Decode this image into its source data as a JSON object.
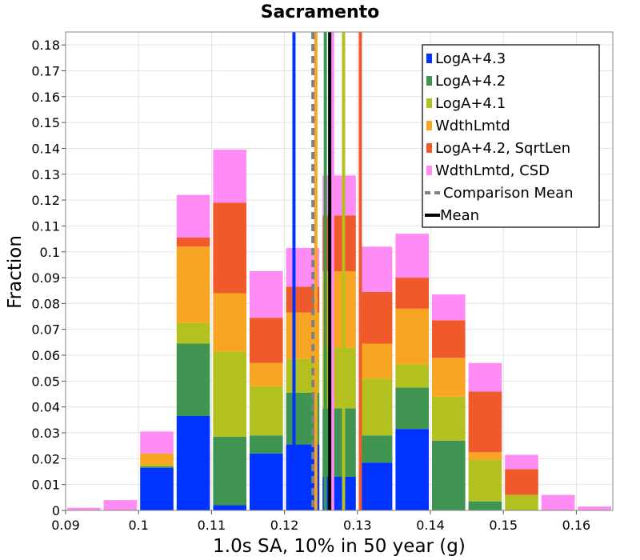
{
  "chart_data": {
    "type": "bar",
    "stacked": true,
    "title": "Sacramento",
    "xlabel": "1.0s SA, 10% in 50 year (g)",
    "ylabel": "Fraction",
    "xlim": [
      0.09,
      0.165
    ],
    "ylim": [
      0,
      0.185
    ],
    "bin_width": 0.005,
    "bin_centers": [
      0.0925,
      0.0975,
      0.1025,
      0.1075,
      0.1125,
      0.1175,
      0.1225,
      0.1275,
      0.1325,
      0.1375,
      0.1425,
      0.1475,
      0.1525,
      0.1575,
      0.1625
    ],
    "x_ticks": [
      "0.09",
      "0.1",
      "0.11",
      "0.12",
      "0.13",
      "0.14",
      "0.15",
      "0.16"
    ],
    "x_tick_values": [
      0.09,
      0.1,
      0.11,
      0.12,
      0.13,
      0.14,
      0.15,
      0.16
    ],
    "y_ticks": [
      "0",
      "0.01",
      "0.02",
      "0.03",
      "0.04",
      "0.05",
      "0.06",
      "0.07",
      "0.08",
      "0.09",
      "0.1",
      "0.11",
      "0.12",
      "0.13",
      "0.14",
      "0.15",
      "0.16",
      "0.17",
      "0.18"
    ],
    "y_tick_values": [
      0,
      0.01,
      0.02,
      0.03,
      0.04,
      0.05,
      0.06,
      0.07,
      0.08,
      0.09,
      0.1,
      0.11,
      0.12,
      0.13,
      0.14,
      0.15,
      0.16,
      0.17,
      0.18
    ],
    "series": [
      {
        "name": "LogA+4.3",
        "color": "#0033ff",
        "values": [
          0,
          0,
          0.0165,
          0.0365,
          0.002,
          0.022,
          0.0255,
          0.013,
          0.0185,
          0.0315,
          0,
          0,
          0,
          0,
          0
        ]
      },
      {
        "name": "LogA+4.2",
        "color": "#3f9452",
        "values": [
          0,
          0,
          0.0005,
          0.028,
          0.0265,
          0.007,
          0.02,
          0.0265,
          0.0105,
          0.016,
          0.027,
          0.0035,
          0,
          0,
          0
        ]
      },
      {
        "name": "LogA+4.1",
        "color": "#b2c11f",
        "values": [
          0,
          0,
          0.0005,
          0.008,
          0.033,
          0.019,
          0.013,
          0.0235,
          0.022,
          0.009,
          0.017,
          0.016,
          0.006,
          0,
          0
        ]
      },
      {
        "name": "WdthLmtd",
        "color": "#f8a524",
        "values": [
          0,
          0,
          0.0045,
          0.0295,
          0.0225,
          0.009,
          0.018,
          0.0295,
          0.0135,
          0.0215,
          0.015,
          0.003,
          0,
          0,
          0
        ]
      },
      {
        "name": "LogA+4.2, SqrtLen",
        "color": "#f0592a",
        "values": [
          0,
          0,
          0,
          0.0035,
          0.035,
          0.0175,
          0.01,
          0.0215,
          0.02,
          0.012,
          0.0145,
          0.0235,
          0.01,
          0,
          0
        ]
      },
      {
        "name": "WdthLmtd, CSD",
        "color": "#ff8cf4",
        "values": [
          0.001,
          0.004,
          0.0085,
          0.0165,
          0.0205,
          0.018,
          0.015,
          0.0155,
          0.0175,
          0.017,
          0.01,
          0.011,
          0.0055,
          0.006,
          0.0015
        ]
      }
    ],
    "vertical_lines": [
      {
        "name": "LogA+4.3",
        "x": 0.1213,
        "color": "#0033ff",
        "style": "solid"
      },
      {
        "name": "LogA+4.2",
        "x": 0.1256,
        "color": "#3f9452",
        "style": "solid"
      },
      {
        "name": "LogA+4.1",
        "x": 0.1281,
        "color": "#b2c11f",
        "style": "solid"
      },
      {
        "name": "WdthLmtd",
        "x": 0.1243,
        "color": "#f8a524",
        "style": "solid"
      },
      {
        "name": "LogA+4.2, SqrtLen",
        "x": 0.1304,
        "color": "#f0592a",
        "style": "solid"
      },
      {
        "name": "WdthLmtd, CSD",
        "x": 0.1266,
        "color": "#ff8cf4",
        "style": "solid"
      },
      {
        "name": "Comparison Mean",
        "x": 0.1239,
        "color": "#808080",
        "style": "dashed"
      },
      {
        "name": "Mean",
        "x": 0.1262,
        "color": "#000000",
        "style": "solid"
      }
    ],
    "legend": {
      "position": "top-right",
      "entries": [
        {
          "label": "LogA+4.3",
          "color": "#0033ff",
          "kind": "box"
        },
        {
          "label": "LogA+4.2",
          "color": "#3f9452",
          "kind": "box"
        },
        {
          "label": "LogA+4.1",
          "color": "#b2c11f",
          "kind": "box"
        },
        {
          "label": "WdthLmtd",
          "color": "#f8a524",
          "kind": "box"
        },
        {
          "label": "LogA+4.2, SqrtLen",
          "color": "#f0592a",
          "kind": "box"
        },
        {
          "label": "WdthLmtd, CSD",
          "color": "#ff8cf4",
          "kind": "box"
        },
        {
          "label": "Comparison Mean",
          "color": "#808080",
          "kind": "dash"
        },
        {
          "label": "Mean",
          "color": "#000000",
          "kind": "line"
        }
      ]
    }
  }
}
